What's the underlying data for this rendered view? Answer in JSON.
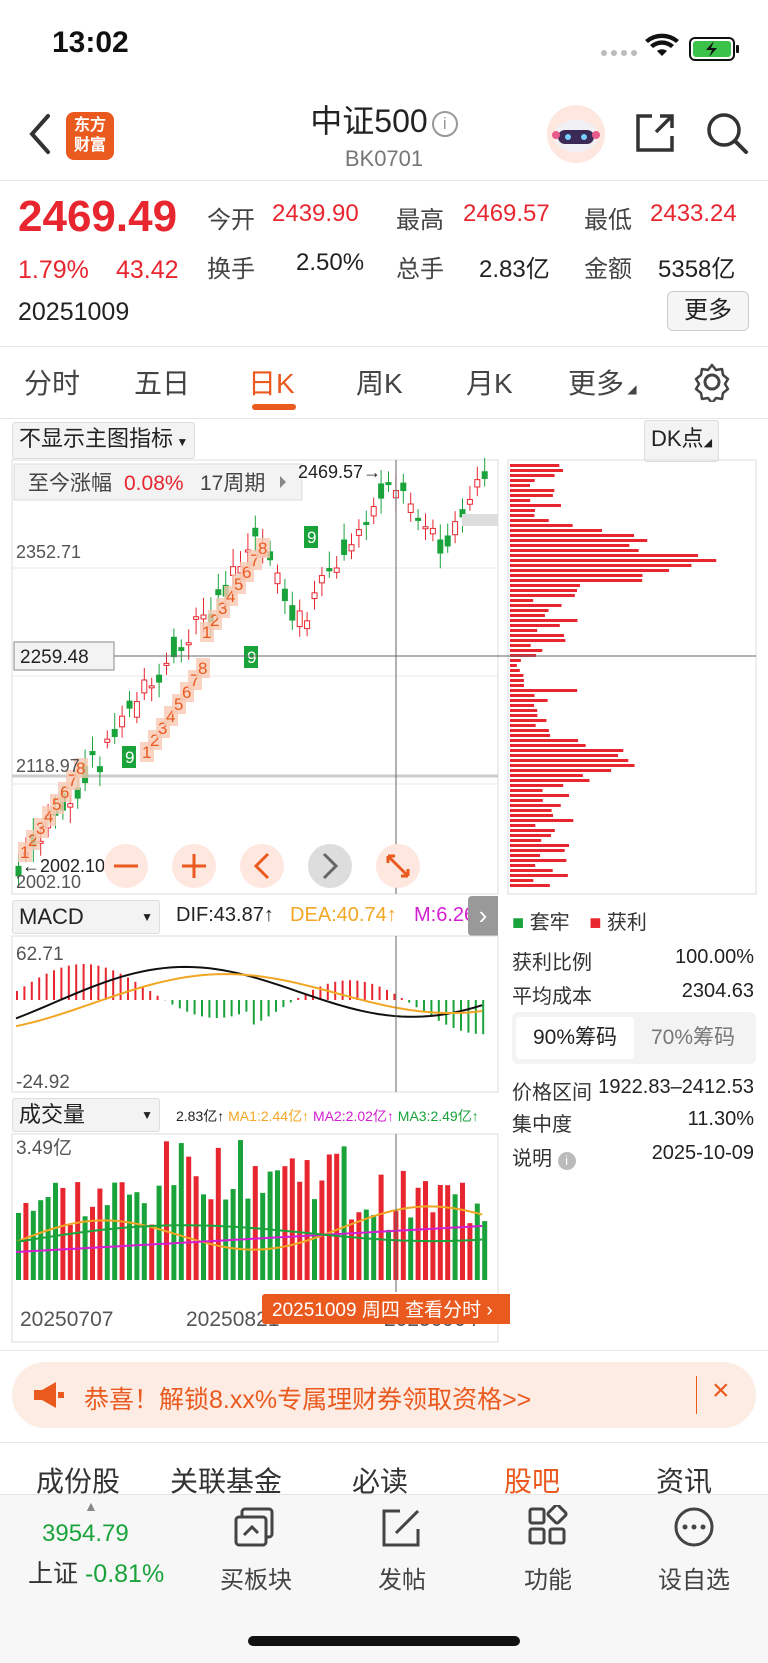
{
  "status": {
    "time": "13:02"
  },
  "header": {
    "title": "中证500",
    "subtitle": "BK0701",
    "logo_text": [
      "东方",
      "财富"
    ]
  },
  "quote": {
    "price": "2469.49",
    "change_pct": "1.79%",
    "change": "43.42",
    "date": "20251009",
    "fields": [
      {
        "label": "今开",
        "value": "2439.90",
        "color": "red"
      },
      {
        "label": "最高",
        "value": "2469.57",
        "color": "red"
      },
      {
        "label": "最低",
        "value": "2433.24",
        "color": "red"
      },
      {
        "label": "换手",
        "value": "2.50%",
        "color": "black"
      },
      {
        "label": "总手",
        "value": "2.83亿",
        "color": "black"
      },
      {
        "label": "金额",
        "value": "5358亿",
        "color": "black"
      }
    ],
    "more_label": "更多"
  },
  "tabs": [
    {
      "label": "分时",
      "active": false
    },
    {
      "label": "五日",
      "active": false
    },
    {
      "label": "日K",
      "active": true
    },
    {
      "label": "周K",
      "active": false
    },
    {
      "label": "月K",
      "active": false
    },
    {
      "label": "更多",
      "active": false
    }
  ],
  "chart_toolbar": {
    "indicator_select": "不显示主图指标",
    "dk_label": "DK点"
  },
  "main_chart": {
    "summary_label": "至今涨幅",
    "summary_value": "0.08%",
    "summary_period": "17周期",
    "high_label": "2469.57",
    "low_label": "2002.10",
    "low_label2": "2002.10",
    "crosshair_price": "2259.48",
    "y_labels": [
      "2352.71",
      "2118.97",
      "2002.10"
    ],
    "td_digits": [
      "1",
      "2",
      "3",
      "4",
      "5",
      "6",
      "7",
      "8",
      "9",
      "1",
      "2",
      "3",
      "4",
      "5",
      "6",
      "7",
      "8",
      "9",
      "1",
      "2",
      "3",
      "4",
      "5",
      "6",
      "7",
      "8",
      "9"
    ]
  },
  "macd": {
    "select": "MACD",
    "dif": "DIF:43.87",
    "dea": "DEA:40.74",
    "m": "M:6.26",
    "y_top": "62.71",
    "y_bottom": "-24.92"
  },
  "volume": {
    "select": "成交量",
    "vol": "2.83亿",
    "ma1": "MA1:2.44亿",
    "ma2": "MA2:2.02亿",
    "ma3": "MA3:2.49亿",
    "y_top": "3.49亿",
    "x_labels": [
      "20250707",
      "20250821",
      "20250904"
    ],
    "tooltip": "20251009 周四 查看分时"
  },
  "chips": {
    "legend_trapped": "套牢",
    "legend_profit": "获利",
    "rows": [
      {
        "label": "获利比例",
        "value": "100.00%"
      },
      {
        "label": "平均成本",
        "value": "2304.63"
      }
    ],
    "tab_90": "90%筹码",
    "tab_70": "70%筹码",
    "rows2": [
      {
        "label": "价格区间",
        "value": "1922.83–2412.53"
      },
      {
        "label": "集中度",
        "value": "11.30%"
      },
      {
        "label": "说明",
        "value": "2025-10-09"
      }
    ]
  },
  "banner": {
    "text": "恭喜！解锁8.xx%专属理财券领取资格>>"
  },
  "bottom_tabs": [
    "成份股",
    "关联基金",
    "必读",
    "股吧",
    "资讯"
  ],
  "bottom_tabs_active": 3,
  "index_ticker": {
    "value": "3954.79",
    "label": "上证",
    "change": "-0.81%"
  },
  "nav": [
    {
      "label": "买板块",
      "icon": "buy-sector-icon"
    },
    {
      "label": "发帖",
      "icon": "compose-icon"
    },
    {
      "label": "功能",
      "icon": "grid-icon"
    },
    {
      "label": "设自选",
      "icon": "more-dots-icon"
    }
  ],
  "colors": {
    "up": "#e8262f",
    "down": "#1aa33b",
    "accent": "#ea5a1f"
  }
}
